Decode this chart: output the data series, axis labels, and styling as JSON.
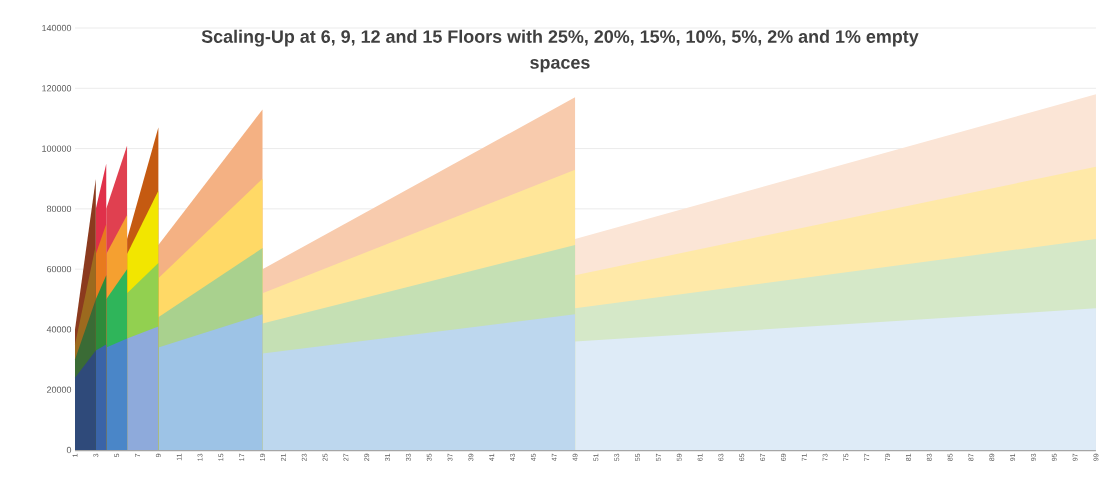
{
  "chart_data": {
    "type": "area",
    "title": "Scaling-Up at 6, 9, 12 and 15 Floors with 25%, 20%, 15%, 10%, 5%, 2% and 1% empty spaces",
    "xlim": [
      1,
      99
    ],
    "ylim": [
      0,
      140000
    ],
    "xticks": [
      1,
      3,
      5,
      7,
      9,
      11,
      13,
      15,
      17,
      19,
      21,
      23,
      25,
      27,
      29,
      31,
      33,
      35,
      37,
      39,
      41,
      43,
      45,
      47,
      49,
      51,
      53,
      55,
      57,
      59,
      61,
      63,
      65,
      67,
      69,
      71,
      73,
      75,
      77,
      79,
      81,
      83,
      85,
      87,
      89,
      91,
      93,
      95,
      97,
      99
    ],
    "yticks": [
      0,
      20000,
      40000,
      60000,
      80000,
      100000,
      120000,
      140000
    ],
    "grid": "y",
    "series": [
      {
        "color": "#fbe5d6",
        "x": [
          49,
          99
        ],
        "values": [
          70000,
          118000
        ]
      },
      {
        "color": "#ffe9a8",
        "x": [
          49,
          99
        ],
        "values": [
          58000,
          94000
        ]
      },
      {
        "color": "#d5e8c8",
        "x": [
          49,
          99
        ],
        "values": [
          47000,
          70000
        ]
      },
      {
        "color": "#deebf7",
        "x": [
          49,
          99
        ],
        "values": [
          36000,
          47000
        ]
      },
      {
        "color": "#f8cbad",
        "x": [
          19,
          49
        ],
        "values": [
          60000,
          117000
        ]
      },
      {
        "color": "#ffe699",
        "x": [
          19,
          49
        ],
        "values": [
          52000,
          93000
        ]
      },
      {
        "color": "#c5e0b4",
        "x": [
          19,
          49
        ],
        "values": [
          42000,
          68000
        ]
      },
      {
        "color": "#bdd7ee",
        "x": [
          19,
          49
        ],
        "values": [
          32000,
          45000
        ]
      },
      {
        "color": "#f4b183",
        "x": [
          9,
          19
        ],
        "values": [
          68000,
          113000
        ]
      },
      {
        "color": "#ffd966",
        "x": [
          9,
          19
        ],
        "values": [
          57000,
          90000
        ]
      },
      {
        "color": "#a9d18e",
        "x": [
          9,
          19
        ],
        "values": [
          44000,
          67000
        ]
      },
      {
        "color": "#9dc3e6",
        "x": [
          9,
          19
        ],
        "values": [
          34000,
          45000
        ]
      },
      {
        "color": "#c55a11",
        "x": [
          6,
          9
        ],
        "values": [
          70000,
          107000
        ]
      },
      {
        "color": "#f2e600",
        "x": [
          6,
          9
        ],
        "values": [
          65000,
          86000
        ]
      },
      {
        "color": "#92d050",
        "x": [
          6,
          9
        ],
        "values": [
          52000,
          62000
        ]
      },
      {
        "color": "#8eaadb",
        "x": [
          6,
          9
        ],
        "values": [
          37000,
          41000
        ]
      },
      {
        "color": "#e04050",
        "x": [
          4,
          6
        ],
        "values": [
          80000,
          101000
        ]
      },
      {
        "color": "#f5a030",
        "x": [
          4,
          6
        ],
        "values": [
          65000,
          78000
        ]
      },
      {
        "color": "#2fb55a",
        "x": [
          4,
          6
        ],
        "values": [
          50000,
          60000
        ]
      },
      {
        "color": "#4a86c8",
        "x": [
          4,
          6
        ],
        "values": [
          34000,
          37000
        ]
      },
      {
        "color": "#e0304a",
        "x": [
          3,
          4
        ],
        "values": [
          80000,
          95000
        ]
      },
      {
        "color": "#e87a1e",
        "x": [
          3,
          4
        ],
        "values": [
          65000,
          75000
        ]
      },
      {
        "color": "#2e8b3a",
        "x": [
          3,
          4
        ],
        "values": [
          50000,
          58000
        ]
      },
      {
        "color": "#3a64a8",
        "x": [
          3,
          4
        ],
        "values": [
          33000,
          35000
        ]
      },
      {
        "color": "#8b3a1e",
        "x": [
          1,
          3
        ],
        "values": [
          40000,
          90000
        ]
      },
      {
        "color": "#9c6a1e",
        "x": [
          1,
          3
        ],
        "values": [
          35000,
          68000
        ]
      },
      {
        "color": "#3a6b35",
        "x": [
          1,
          3
        ],
        "values": [
          30000,
          50000
        ]
      },
      {
        "color": "#2f4a7a",
        "x": [
          1,
          3
        ],
        "values": [
          24000,
          33000
        ]
      }
    ]
  }
}
